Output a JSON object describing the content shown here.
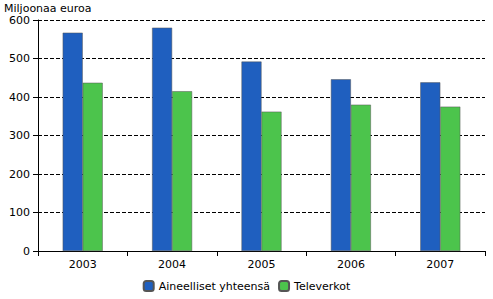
{
  "chart_data": {
    "type": "bar",
    "y_label": "Miljoonaa euroa",
    "categories": [
      "2003",
      "2004",
      "2005",
      "2006",
      "2007"
    ],
    "series": [
      {
        "name": "Aineelliset yhteensä",
        "color": "#1f5fbf",
        "values": [
          567,
          580,
          492,
          446,
          438
        ]
      },
      {
        "name": "Televerkot",
        "color": "#4cc44c",
        "values": [
          437,
          415,
          362,
          380,
          375
        ]
      }
    ],
    "ylim": [
      0,
      600
    ],
    "yticks": [
      0,
      100,
      200,
      300,
      400,
      500,
      600
    ],
    "grid": true,
    "legend": "bottom"
  }
}
